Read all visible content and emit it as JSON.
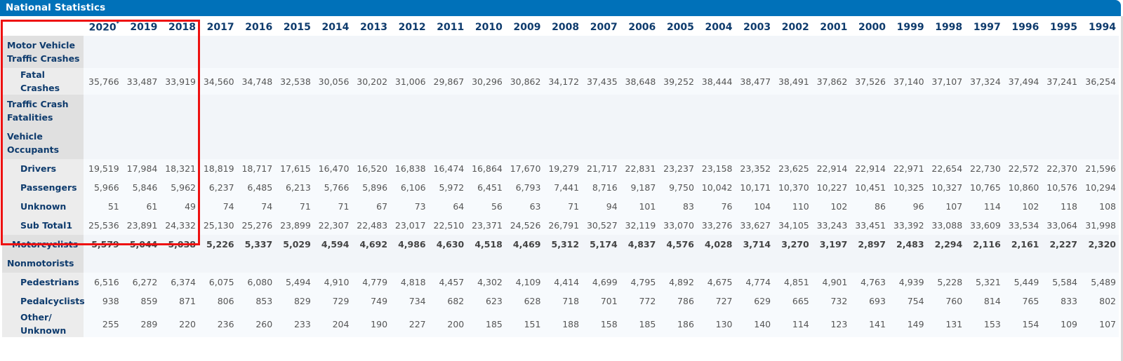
{
  "header": {
    "title": "National Statistics"
  },
  "table": {
    "years": [
      "2020",
      "2019",
      "2018",
      "2017",
      "2016",
      "2015",
      "2014",
      "2013",
      "2012",
      "2011",
      "2010",
      "2009",
      "2008",
      "2007",
      "2006",
      "2005",
      "2004",
      "2003",
      "2002",
      "2001",
      "2000",
      "1999",
      "1998",
      "1997",
      "1996",
      "1995",
      "1994"
    ],
    "year_footnote": "*",
    "rows": [
      {
        "label": "Motor Vehicle Traffic Crashes",
        "type": "section",
        "values": []
      },
      {
        "label": "Fatal Crashes",
        "type": "sub",
        "values": [
          "35,766",
          "33,487",
          "33,919",
          "34,560",
          "34,748",
          "32,538",
          "30,056",
          "30,202",
          "31,006",
          "29,867",
          "30,296",
          "30,862",
          "34,172",
          "37,435",
          "38,648",
          "39,252",
          "38,444",
          "38,477",
          "38,491",
          "37,862",
          "37,526",
          "37,140",
          "37,107",
          "37,324",
          "37,494",
          "37,241",
          "36,254"
        ]
      },
      {
        "label": "Traffic Crash Fatalities",
        "type": "section",
        "values": []
      },
      {
        "label": "Vehicle Occupants",
        "type": "section",
        "values": []
      },
      {
        "label": "Drivers",
        "type": "sub",
        "values": [
          "19,519",
          "17,984",
          "18,321",
          "18,819",
          "18,717",
          "17,615",
          "16,470",
          "16,520",
          "16,838",
          "16,474",
          "16,864",
          "17,670",
          "19,279",
          "21,717",
          "22,831",
          "23,237",
          "23,158",
          "23,352",
          "23,625",
          "22,914",
          "22,914",
          "22,971",
          "22,654",
          "22,730",
          "22,572",
          "22,370",
          "21,596"
        ]
      },
      {
        "label": "Passengers",
        "type": "sub",
        "values": [
          "5,966",
          "5,846",
          "5,962",
          "6,237",
          "6,485",
          "6,213",
          "5,766",
          "5,896",
          "6,106",
          "5,972",
          "6,451",
          "6,793",
          "7,441",
          "8,716",
          "9,187",
          "9,750",
          "10,042",
          "10,171",
          "10,370",
          "10,227",
          "10,451",
          "10,325",
          "10,327",
          "10,765",
          "10,860",
          "10,576",
          "10,294"
        ]
      },
      {
        "label": "Unknown",
        "type": "sub",
        "values": [
          "51",
          "61",
          "49",
          "74",
          "74",
          "71",
          "71",
          "67",
          "73",
          "64",
          "56",
          "63",
          "71",
          "94",
          "101",
          "83",
          "76",
          "104",
          "110",
          "102",
          "86",
          "96",
          "107",
          "114",
          "102",
          "118",
          "108"
        ]
      },
      {
        "label": "Sub Total1",
        "type": "sub",
        "values": [
          "25,536",
          "23,891",
          "24,332",
          "25,130",
          "25,276",
          "23,899",
          "22,307",
          "22,483",
          "23,017",
          "22,510",
          "23,371",
          "24,526",
          "26,791",
          "30,527",
          "32,119",
          "33,070",
          "33,276",
          "33,627",
          "34,105",
          "33,243",
          "33,451",
          "33,392",
          "33,088",
          "33,609",
          "33,534",
          "33,064",
          "31,998"
        ]
      },
      {
        "label": "Motorcyclists",
        "type": "section-bold",
        "values": [
          "5,579",
          "5,044",
          "5,038",
          "5,226",
          "5,337",
          "5,029",
          "4,594",
          "4,692",
          "4,986",
          "4,630",
          "4,518",
          "4,469",
          "5,312",
          "5,174",
          "4,837",
          "4,576",
          "4,028",
          "3,714",
          "3,270",
          "3,197",
          "2,897",
          "2,483",
          "2,294",
          "2,116",
          "2,161",
          "2,227",
          "2,320"
        ]
      },
      {
        "label": "Nonmotorists",
        "type": "section",
        "values": []
      },
      {
        "label": "Pedestrians",
        "type": "sub",
        "values": [
          "6,516",
          "6,272",
          "6,374",
          "6,075",
          "6,080",
          "5,494",
          "4,910",
          "4,779",
          "4,818",
          "4,457",
          "4,302",
          "4,109",
          "4,414",
          "4,699",
          "4,795",
          "4,892",
          "4,675",
          "4,774",
          "4,851",
          "4,901",
          "4,763",
          "4,939",
          "5,228",
          "5,321",
          "5,449",
          "5,584",
          "5,489"
        ]
      },
      {
        "label": "Pedalcyclists",
        "type": "sub",
        "values": [
          "938",
          "859",
          "871",
          "806",
          "853",
          "829",
          "729",
          "749",
          "734",
          "682",
          "623",
          "628",
          "718",
          "701",
          "772",
          "786",
          "727",
          "629",
          "665",
          "732",
          "693",
          "754",
          "760",
          "814",
          "765",
          "833",
          "802"
        ]
      },
      {
        "label": "Other/ Unknown",
        "type": "sub",
        "values": [
          "255",
          "289",
          "220",
          "236",
          "260",
          "233",
          "204",
          "190",
          "227",
          "200",
          "185",
          "151",
          "188",
          "158",
          "185",
          "186",
          "130",
          "140",
          "114",
          "123",
          "141",
          "149",
          "131",
          "153",
          "154",
          "109",
          "107"
        ]
      }
    ]
  },
  "highlight": {
    "color": "#ee1111",
    "covers": [
      "2020",
      "2019",
      "2018"
    ]
  },
  "colors": {
    "title_bar": "#0071b9",
    "year_text": "#0e3b6d",
    "label_text": "#0e3b6d",
    "value_text": "#555555"
  }
}
